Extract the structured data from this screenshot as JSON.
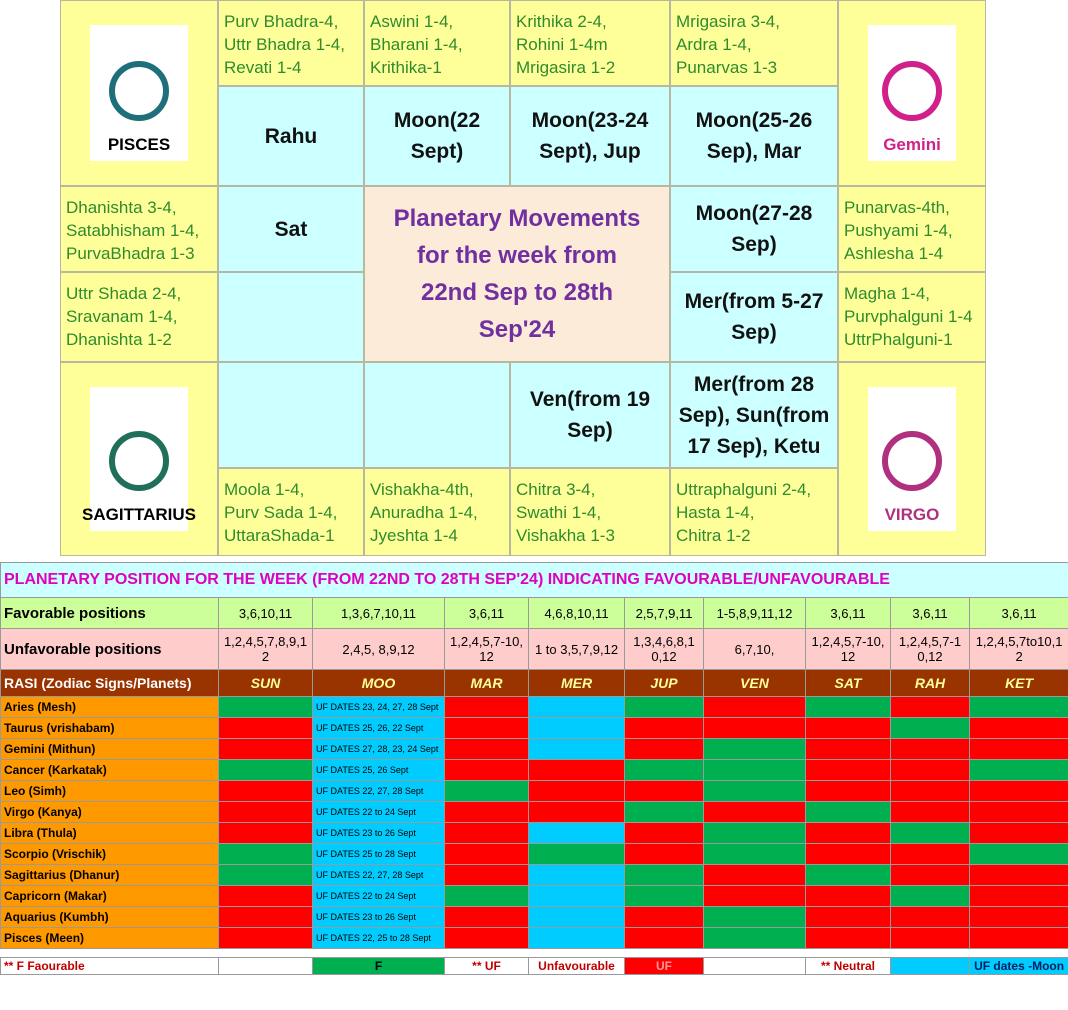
{
  "chart": {
    "title_lines": [
      "Planetary Movements",
      "for the week from",
      "22nd Sep to 28th",
      "Sep'24"
    ],
    "nakshatras": [
      {
        "lines": [
          "Purv Bhadra-4,",
          "Uttr Bhadra 1-4,",
          "Revati 1-4"
        ]
      },
      {
        "lines": [
          "Aswini 1-4,",
          "Bharani 1-4,",
          "Krithika-1"
        ]
      },
      {
        "lines": [
          "Krithika 2-4,",
          "Rohini 1-4m",
          "Mrigasira 1-2"
        ]
      },
      {
        "lines": [
          "Mrigasira 3-4,",
          "Ardra 1-4,",
          "Punarvas 1-3"
        ]
      },
      {
        "lines": [
          "Punarvas-4th,",
          "Pushyami 1-4,",
          "Ashlesha 1-4"
        ]
      },
      {
        "lines": [
          "Magha 1-4,",
          "Purvphalguni 1-4",
          "UttrPhalguni-1"
        ]
      },
      {
        "lines": [
          "Uttraphalguni 2-4,",
          "Hasta 1-4,",
          "Chitra 1-2"
        ]
      },
      {
        "lines": [
          "Chitra 3-4,",
          "Swathi 1-4,",
          "Vishakha 1-3"
        ]
      },
      {
        "lines": [
          "Vishakha-4th,",
          "Anuradha 1-4,",
          "Jyeshta 1-4"
        ]
      },
      {
        "lines": [
          "Moola 1-4,",
          "Purv Sada 1-4,",
          "UttaraShada-1"
        ]
      },
      {
        "lines": [
          "Uttr Shada 2-4,",
          "Sravanam 1-4,",
          "Dhanishta 1-2"
        ]
      },
      {
        "lines": [
          "Dhanishta 3-4,",
          "Satabhisham 1-4,",
          "PurvaBhadra 1-3"
        ]
      }
    ],
    "planets": [
      {
        "lines": [
          "Rahu"
        ]
      },
      {
        "lines": [
          "Moon(22",
          "Sept)"
        ]
      },
      {
        "lines": [
          "Moon(23-24",
          "Sept), Jup"
        ]
      },
      {
        "lines": [
          "Moon(25-26",
          "Sep), Mar"
        ]
      },
      {
        "lines": [
          "Moon(27-28",
          "Sep)"
        ]
      },
      {
        "lines": [
          "Mer(from 5-27",
          "Sep)"
        ]
      },
      {
        "lines": [
          "Mer(from 28",
          "Sep), Sun(from",
          "17 Sep), Ketu"
        ]
      },
      {
        "lines": [
          "Ven(from 19",
          "Sep)"
        ]
      },
      {
        "lines": []
      },
      {
        "lines": []
      },
      {
        "lines": []
      },
      {
        "lines": [
          "Sat"
        ]
      }
    ],
    "signs": [
      {
        "label": "PISCES",
        "color": "#1f6f7a"
      },
      {
        "label": "Gemini",
        "color": "#d0208a"
      },
      {
        "label": "SAGITTARIUS",
        "color": "#1f6f5a"
      },
      {
        "label": "VIRGO",
        "color": "#b0307f"
      }
    ]
  },
  "table": {
    "title": "PLANETARY POSITION FOR THE WEEK (FROM 22ND TO 28TH SEP'24) INDICATING FAVOURABLE/UNFAVOURABLE",
    "favorable": {
      "label": "Favorable positions",
      "values": [
        "3,6,10,11",
        "1,3,6,7,10,11",
        "3,6,11",
        "4,6,8,10,11",
        "2,5,7,9,11",
        "1-5,8,9,11,12",
        "3,6,11",
        "3,6,11",
        "3,6,11"
      ]
    },
    "unfavorable": {
      "label": "Unfavorable positions",
      "values": [
        "1,2,4,5,7,8,9,12",
        "2,4,5, 8,9,12",
        "1,2,4,5,7-10,12",
        "1 to 3,5,7,9,12",
        "1,3,4,6,8,10,12",
        "6,7,10,",
        "1,2,4,5,7-10,12",
        "1,2,4,5,7-10,12",
        "1,2,4,5,7to10,12"
      ]
    },
    "header": [
      "RASI (Zodiac Signs/Planets)",
      "SUN",
      "MOO",
      "MAR",
      "MER",
      "JUP",
      "VEN",
      "SAT",
      "RAH",
      "KET"
    ],
    "rows": [
      {
        "name": "Aries (Mesh)",
        "moon": "UF DATES 23, 24, 27, 28 Sept",
        "colors": [
          "G",
          "R",
          "B",
          "G",
          "R",
          "G",
          "R",
          "G"
        ]
      },
      {
        "name": "Taurus (vrishabam)",
        "moon": "UF DATES 25, 26, 22 Sept",
        "colors": [
          "R",
          "R",
          "B",
          "R",
          "R",
          "R",
          "G",
          "R"
        ]
      },
      {
        "name": "Gemini (Mithun)",
        "moon": "UF DATES 27, 28, 23, 24 Sept",
        "colors": [
          "R",
          "R",
          "B",
          "R",
          "G",
          "R",
          "R",
          "R"
        ]
      },
      {
        "name": "Cancer (Karkatak)",
        "moon": "UF DATES 25, 26 Sept",
        "colors": [
          "G",
          "R",
          "R",
          "G",
          "G",
          "R",
          "R",
          "G"
        ]
      },
      {
        "name": "Leo (Simh)",
        "moon": "UF DATES 22, 27, 28 Sept",
        "colors": [
          "R",
          "G",
          "R",
          "R",
          "G",
          "R",
          "R",
          "R"
        ]
      },
      {
        "name": "Virgo (Kanya)",
        "moon": "UF DATES 22 to 24 Sept",
        "colors": [
          "R",
          "R",
          "R",
          "G",
          "R",
          "G",
          "R",
          "R"
        ]
      },
      {
        "name": "Libra (Thula)",
        "moon": "UF DATES  23 to 26 Sept",
        "colors": [
          "R",
          "R",
          "B",
          "R",
          "G",
          "R",
          "G",
          "R"
        ]
      },
      {
        "name": "Scorpio (Vrischik)",
        "moon": "UF DATES 25 to 28 Sept",
        "colors": [
          "G",
          "R",
          "G",
          "R",
          "G",
          "R",
          "R",
          "G"
        ]
      },
      {
        "name": "Sagittarius (Dhanur)",
        "moon": "UF DATES 22, 27, 28 Sept",
        "colors": [
          "G",
          "R",
          "B",
          "G",
          "R",
          "G",
          "R",
          "R"
        ]
      },
      {
        "name": "Capricorn (Makar)",
        "moon": "UF DATES 22 to 24 Sept",
        "colors": [
          "R",
          "G",
          "B",
          "G",
          "R",
          "R",
          "G",
          "R"
        ]
      },
      {
        "name": "Aquarius (Kumbh)",
        "moon": "UF DATES 23 to 26 Sept",
        "colors": [
          "R",
          "R",
          "B",
          "R",
          "G",
          "R",
          "R",
          "R"
        ]
      },
      {
        "name": "Pisces (Meen)",
        "moon": "UF DATES 22, 25 to 28 Sept",
        "colors": [
          "R",
          "R",
          "B",
          "R",
          "G",
          "R",
          "R",
          "R"
        ]
      }
    ],
    "palette": {
      "G": "#00b050",
      "R": "#ff0000",
      "B": "#00ccff"
    },
    "legend": [
      {
        "text": "** F   Faourable",
        "color": "#ffffff"
      },
      {
        "color": "#ffffff"
      },
      {
        "text": "F",
        "color": "#00b050"
      },
      {
        "text": "** UF",
        "color": "#ffffff"
      },
      {
        "text": "Unfavourable",
        "color": "#ffffff"
      },
      {
        "text": "UF",
        "color": "#ff0000"
      },
      {
        "color": "#ffffff"
      },
      {
        "text": "** Neutral",
        "color": "#ffffff"
      },
      {
        "color": "#00ccff"
      },
      {
        "text": "UF dates -Moon",
        "color": "#00ccff"
      }
    ]
  }
}
